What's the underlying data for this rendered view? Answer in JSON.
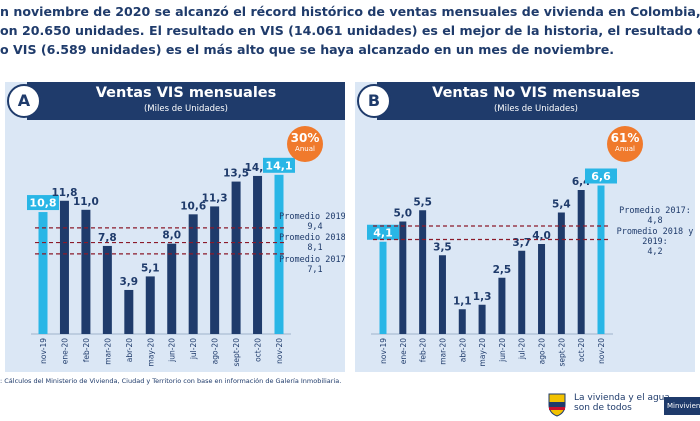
{
  "intro": {
    "line1": "n noviembre de 2020 se alcanzó el récord histórico de ventas mensuales de vivienda en Colombia,",
    "line2": "on 20.650 unidades. El resultado en VIS (14.061 unidades) es el mejor de la historia, el resultado de",
    "line3": "o VIS (6.589 unidades) es el más alto que se haya alcanzado en un mes de noviembre."
  },
  "source": ": Cálculos del Ministerio de Vivienda, Ciudad y Territorio con base en información de Galería Inmobiliaria.",
  "footer": {
    "line1": "La vivienda y el agua",
    "line2": "son de todos",
    "ministry": "Minvivienda"
  },
  "colors": {
    "navy": "#1f3b6b",
    "cyan": "#29b6e6",
    "orange": "#f07a2c",
    "reference_line": "#8b1a2a",
    "panel_bg": "#dbe7f5"
  },
  "chart_data": [
    {
      "type": "bar",
      "letter": "A",
      "title": "Ventas VIS mensuales",
      "subtitle": "(Miles de Unidades)",
      "growth": {
        "value": "30%",
        "label": "Anual"
      },
      "categories": [
        "nov-19",
        "ene-20",
        "feb-20",
        "mar-20",
        "abr-20",
        "may-20",
        "jun-20",
        "jul-20",
        "ago-20",
        "sept-20",
        "oct-20",
        "nov-20"
      ],
      "values": [
        10.8,
        11.8,
        11.0,
        7.8,
        3.9,
        5.1,
        8.0,
        10.6,
        11.3,
        13.5,
        14.0,
        14.1
      ],
      "value_labels": [
        "10,8",
        "11,8",
        "11,0",
        "7,8",
        "3,9",
        "5,1",
        "8,0",
        "10,6",
        "11,3",
        "13,5",
        "14,0",
        "14,1"
      ],
      "highlight_indices": [
        0,
        11
      ],
      "ylim": [
        0,
        15.5
      ],
      "grid": false,
      "reference_lines": [
        {
          "value": 9.4,
          "label_lines": [
            "Promedio 2019:",
            "9,4"
          ]
        },
        {
          "value": 8.1,
          "label_lines": [
            "Promedio 2018:",
            "8,1"
          ]
        },
        {
          "value": 7.1,
          "label_lines": [
            "Promedio 2017:",
            "7,1"
          ]
        }
      ]
    },
    {
      "type": "bar",
      "letter": "B",
      "title": "Ventas No VIS mensuales",
      "subtitle": "(Miles de Unidades)",
      "growth": {
        "value": "61%",
        "label": "Anual"
      },
      "categories": [
        "nov-19",
        "ene-20",
        "feb-20",
        "mar-20",
        "abr-20",
        "may-20",
        "jun-20",
        "jul-20",
        "ago-20",
        "sept-20",
        "oct-20",
        "nov-20"
      ],
      "values": [
        4.1,
        5.0,
        5.5,
        3.5,
        1.1,
        1.3,
        2.5,
        3.7,
        4.0,
        5.4,
        6.4,
        6.6
      ],
      "value_labels": [
        "4,1",
        "5,0",
        "5,5",
        "3,5",
        "1,1",
        "1,3",
        "2,5",
        "3,7",
        "4,0",
        "5,4",
        "6,4",
        "6,6"
      ],
      "highlight_indices": [
        0,
        11
      ],
      "ylim": [
        0,
        7.2
      ],
      "grid": false,
      "reference_lines": [
        {
          "value": 4.8,
          "label_lines": [
            "Promedio 2017:",
            "4,8"
          ]
        },
        {
          "value": 4.2,
          "label_lines": [
            "Promedio 2018 y",
            "2019:",
            "4,2"
          ]
        }
      ]
    }
  ]
}
